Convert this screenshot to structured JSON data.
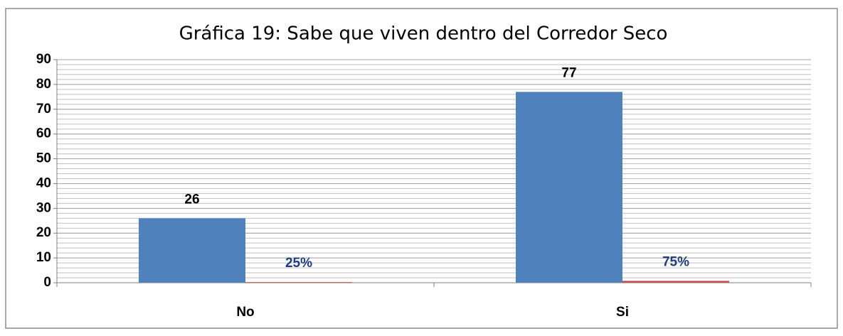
{
  "chart_data": {
    "type": "bar",
    "title": "Gráfica  19: Sabe que viven dentro del Corredor Seco",
    "categories": [
      "No",
      "Si"
    ],
    "series": [
      {
        "color": "#4f81bd",
        "values": [
          26,
          77
        ]
      },
      {
        "color": "#c0504d",
        "values": [
          0.25,
          0.75
        ],
        "value_labels": [
          "25%",
          "75%"
        ],
        "label_color": "#1f3d7a"
      }
    ],
    "ylim": [
      0,
      90
    ],
    "yticks": [
      0,
      10,
      20,
      30,
      40,
      50,
      60,
      70,
      80,
      90
    ],
    "grid": true,
    "minor_grid_step": 2
  }
}
